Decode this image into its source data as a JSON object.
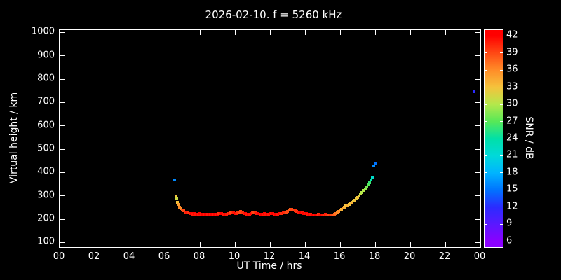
{
  "title": "2026-02-10. f = 5260 kHz",
  "axes": {
    "x_label": "UT Time / hrs",
    "y_label": "Virtual height / km",
    "xlim": [
      0,
      24
    ],
    "ylim": [
      80,
      1010
    ],
    "x_ticks": [
      {
        "value": 0,
        "label": "00"
      },
      {
        "value": 2,
        "label": "02"
      },
      {
        "value": 4,
        "label": "04"
      },
      {
        "value": 6,
        "label": "06"
      },
      {
        "value": 8,
        "label": "08"
      },
      {
        "value": 10,
        "label": "10"
      },
      {
        "value": 12,
        "label": "12"
      },
      {
        "value": 14,
        "label": "14"
      },
      {
        "value": 16,
        "label": "16"
      },
      {
        "value": 18,
        "label": "18"
      },
      {
        "value": 20,
        "label": "20"
      },
      {
        "value": 22,
        "label": "22"
      },
      {
        "value": 24,
        "label": "00"
      }
    ],
    "y_ticks": [
      100,
      200,
      300,
      400,
      500,
      600,
      700,
      800,
      900,
      1000
    ]
  },
  "colorbar": {
    "label": "SNR / dB",
    "range": [
      5,
      43
    ],
    "ticks": [
      6,
      9,
      12,
      15,
      18,
      21,
      24,
      27,
      30,
      33,
      36,
      39,
      42
    ],
    "stops": [
      {
        "value": 6,
        "color": "#8b00ff"
      },
      {
        "value": 9,
        "color": "#5a18ff"
      },
      {
        "value": 12,
        "color": "#2b2bff"
      },
      {
        "value": 15,
        "color": "#0073ff"
      },
      {
        "value": 18,
        "color": "#00b4ff"
      },
      {
        "value": 21,
        "color": "#00d9d9"
      },
      {
        "value": 24,
        "color": "#00e0a8"
      },
      {
        "value": 27,
        "color": "#57e857"
      },
      {
        "value": 30,
        "color": "#b4e84b"
      },
      {
        "value": 33,
        "color": "#f5c23c"
      },
      {
        "value": 36,
        "color": "#ff8c28"
      },
      {
        "value": 39,
        "color": "#ff4814"
      },
      {
        "value": 42,
        "color": "#ff0000"
      }
    ]
  },
  "chart_data": {
    "type": "scatter",
    "title": "2026-02-10. f = 5260 kHz",
    "xlabel": "UT Time / hrs",
    "ylabel": "Virtual height / km",
    "colorbar_label": "SNR / dB",
    "xlim": [
      0,
      24
    ],
    "ylim": [
      80,
      1010
    ],
    "snr_range": [
      5,
      43
    ],
    "grid": false,
    "points_format": [
      "ut_time_hrs",
      "virtual_height_km",
      "snr_db"
    ],
    "points": [
      [
        6.55,
        368,
        16
      ],
      [
        6.62,
        300,
        33
      ],
      [
        6.67,
        289,
        31
      ],
      [
        6.72,
        273,
        33
      ],
      [
        6.78,
        262,
        35
      ],
      [
        6.85,
        252,
        36
      ],
      [
        6.92,
        246,
        36
      ],
      [
        7.0,
        240,
        38
      ],
      [
        7.08,
        235,
        39
      ],
      [
        7.17,
        231,
        40
      ],
      [
        7.25,
        228,
        41
      ],
      [
        7.33,
        226,
        40
      ],
      [
        7.42,
        224,
        41
      ],
      [
        7.5,
        223,
        42
      ],
      [
        7.58,
        222,
        41
      ],
      [
        7.67,
        223,
        42
      ],
      [
        7.75,
        222,
        41
      ],
      [
        7.83,
        221,
        42
      ],
      [
        7.92,
        222,
        41
      ],
      [
        8.0,
        223,
        42
      ],
      [
        8.08,
        222,
        41
      ],
      [
        8.17,
        221,
        42
      ],
      [
        8.25,
        222,
        41
      ],
      [
        8.33,
        221,
        42
      ],
      [
        8.42,
        222,
        41
      ],
      [
        8.5,
        220,
        42
      ],
      [
        8.58,
        221,
        41
      ],
      [
        8.67,
        222,
        42
      ],
      [
        8.75,
        221,
        41
      ],
      [
        8.83,
        220,
        42
      ],
      [
        8.92,
        221,
        41
      ],
      [
        9.0,
        222,
        42
      ],
      [
        9.08,
        224,
        40
      ],
      [
        9.17,
        225,
        41
      ],
      [
        9.25,
        223,
        42
      ],
      [
        9.33,
        221,
        41
      ],
      [
        9.42,
        220,
        42
      ],
      [
        9.5,
        221,
        41
      ],
      [
        9.58,
        223,
        40
      ],
      [
        9.67,
        224,
        41
      ],
      [
        9.75,
        226,
        39
      ],
      [
        9.83,
        228,
        40
      ],
      [
        9.92,
        226,
        41
      ],
      [
        10.0,
        224,
        42
      ],
      [
        10.08,
        223,
        41
      ],
      [
        10.17,
        226,
        40
      ],
      [
        10.25,
        229,
        39
      ],
      [
        10.33,
        232,
        39
      ],
      [
        10.42,
        228,
        40
      ],
      [
        10.5,
        225,
        41
      ],
      [
        10.58,
        223,
        42
      ],
      [
        10.67,
        222,
        41
      ],
      [
        10.75,
        221,
        42
      ],
      [
        10.83,
        222,
        41
      ],
      [
        10.92,
        224,
        42
      ],
      [
        11.0,
        226,
        40
      ],
      [
        11.08,
        228,
        39
      ],
      [
        11.17,
        226,
        40
      ],
      [
        11.25,
        224,
        41
      ],
      [
        11.33,
        223,
        42
      ],
      [
        11.42,
        222,
        41
      ],
      [
        11.5,
        221,
        42
      ],
      [
        11.58,
        222,
        41
      ],
      [
        11.67,
        223,
        42
      ],
      [
        11.75,
        222,
        41
      ],
      [
        11.83,
        221,
        42
      ],
      [
        11.92,
        222,
        41
      ],
      [
        12.0,
        223,
        42
      ],
      [
        12.08,
        224,
        41
      ],
      [
        12.17,
        223,
        42
      ],
      [
        12.25,
        222,
        41
      ],
      [
        12.33,
        221,
        42
      ],
      [
        12.42,
        222,
        41
      ],
      [
        12.5,
        223,
        42
      ],
      [
        12.58,
        224,
        41
      ],
      [
        12.67,
        225,
        40
      ],
      [
        12.75,
        226,
        41
      ],
      [
        12.83,
        228,
        40
      ],
      [
        12.92,
        230,
        39
      ],
      [
        13.0,
        234,
        39
      ],
      [
        13.08,
        239,
        38
      ],
      [
        13.17,
        242,
        38
      ],
      [
        13.25,
        243,
        39
      ],
      [
        13.33,
        240,
        39
      ],
      [
        13.42,
        237,
        40
      ],
      [
        13.5,
        234,
        40
      ],
      [
        13.58,
        231,
        41
      ],
      [
        13.67,
        229,
        41
      ],
      [
        13.75,
        227,
        42
      ],
      [
        13.83,
        226,
        41
      ],
      [
        13.92,
        225,
        42
      ],
      [
        14.0,
        224,
        41
      ],
      [
        14.08,
        223,
        42
      ],
      [
        14.17,
        222,
        41
      ],
      [
        14.25,
        221,
        42
      ],
      [
        14.33,
        220,
        41
      ],
      [
        14.42,
        219,
        42
      ],
      [
        14.5,
        219,
        41
      ],
      [
        14.58,
        218,
        42
      ],
      [
        14.67,
        219,
        41
      ],
      [
        14.75,
        220,
        40
      ],
      [
        14.83,
        219,
        41
      ],
      [
        14.92,
        218,
        42
      ],
      [
        15.0,
        218,
        41
      ],
      [
        15.08,
        219,
        40
      ],
      [
        15.17,
        220,
        41
      ],
      [
        15.25,
        219,
        40
      ],
      [
        15.33,
        218,
        39
      ],
      [
        15.42,
        217,
        40
      ],
      [
        15.5,
        218,
        39
      ],
      [
        15.58,
        219,
        38
      ],
      [
        15.67,
        221,
        38
      ],
      [
        15.75,
        224,
        37
      ],
      [
        15.83,
        228,
        36
      ],
      [
        15.92,
        233,
        36
      ],
      [
        16.0,
        238,
        35
      ],
      [
        16.08,
        243,
        34
      ],
      [
        16.17,
        248,
        35
      ],
      [
        16.25,
        252,
        34
      ],
      [
        16.33,
        256,
        33
      ],
      [
        16.42,
        260,
        34
      ],
      [
        16.5,
        264,
        33
      ],
      [
        16.58,
        268,
        33
      ],
      [
        16.67,
        272,
        34
      ],
      [
        16.75,
        277,
        32
      ],
      [
        16.83,
        282,
        33
      ],
      [
        16.92,
        288,
        32
      ],
      [
        17.0,
        294,
        33
      ],
      [
        17.08,
        300,
        32
      ],
      [
        17.17,
        307,
        31
      ],
      [
        17.25,
        314,
        30
      ],
      [
        17.33,
        322,
        30
      ],
      [
        17.42,
        330,
        29
      ],
      [
        17.5,
        338,
        28
      ],
      [
        17.58,
        347,
        27
      ],
      [
        17.67,
        356,
        26
      ],
      [
        17.75,
        368,
        24
      ],
      [
        17.83,
        380,
        22
      ],
      [
        17.92,
        428,
        16
      ],
      [
        17.98,
        438,
        15
      ],
      [
        23.65,
        745,
        12
      ]
    ]
  }
}
